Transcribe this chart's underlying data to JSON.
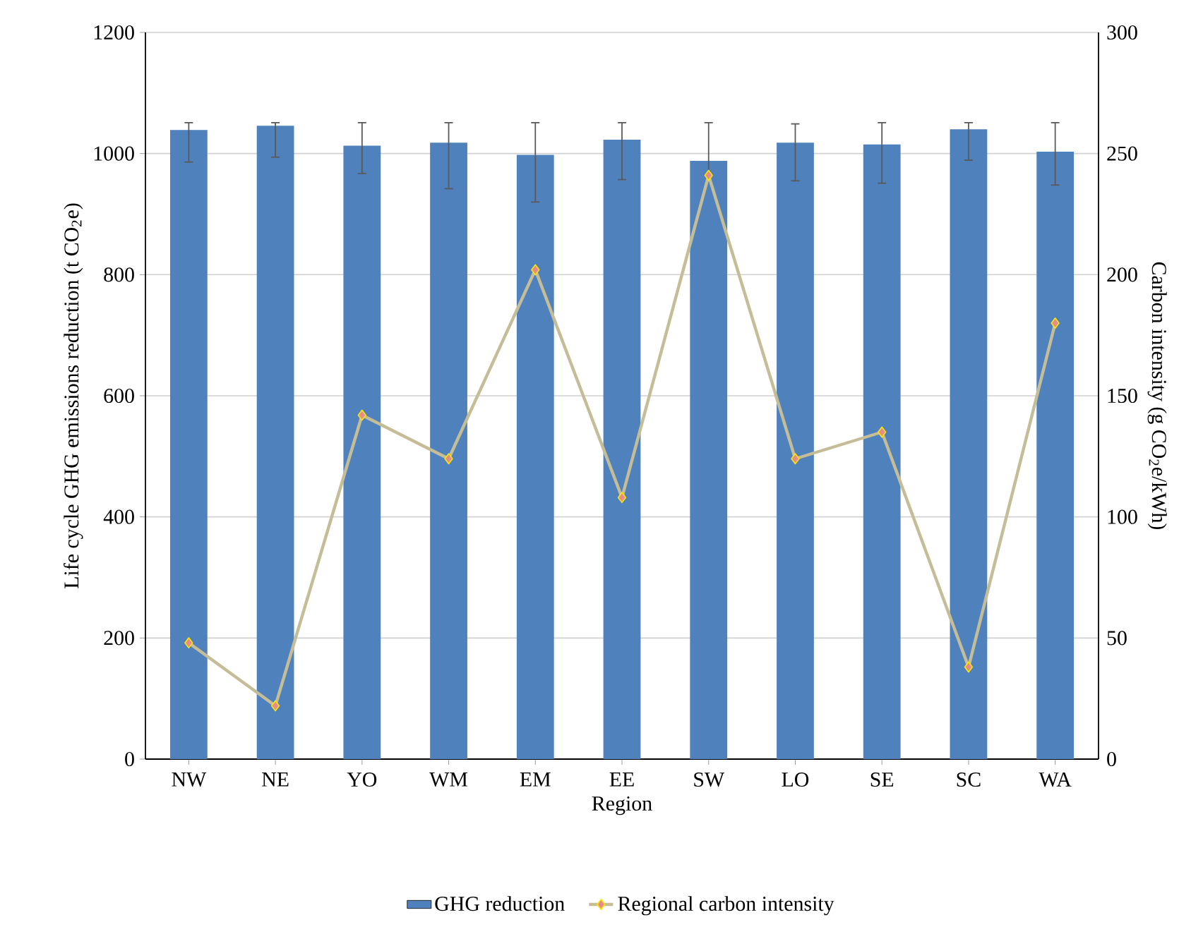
{
  "chart_data": {
    "type": "bar",
    "xlabel": "Region",
    "ylabel": "Life cycle GHG emissions reduction (t CO$_{2}$e)",
    "y2label": "Carbon intensity  (g CO$_{2}$e/kWh)",
    "categories": [
      "NW",
      "NE",
      "YO",
      "WM",
      "EM",
      "EE",
      "SW",
      "LO",
      "SE",
      "SC",
      "WA"
    ],
    "series": [
      {
        "name": "GHG reduction",
        "color": "#4f81bd",
        "values": [
          1039,
          1046,
          1013,
          1018,
          998,
          1023,
          988,
          1018,
          1015,
          1040,
          1003
        ],
        "errors": [
          [
            986,
            1051
          ],
          [
            994,
            1051
          ],
          [
            967,
            1051
          ],
          [
            942,
            1051
          ],
          [
            920,
            1051
          ],
          [
            957,
            1051
          ],
          [
            965,
            1051
          ],
          [
            955,
            1049
          ],
          [
            951,
            1051
          ],
          [
            989,
            1051
          ],
          [
            948,
            1051
          ]
        ]
      },
      {
        "name": "Regional carbon intensity",
        "type": "line",
        "axis": "y2",
        "color": "#c4bd97",
        "values": [
          48,
          22,
          142,
          124,
          202,
          108,
          241,
          124,
          135,
          38,
          180
        ]
      }
    ],
    "ylim": [
      0,
      1200
    ],
    "yticks": [
      0,
      200,
      400,
      600,
      800,
      1000,
      1200
    ],
    "y2lim": [
      0,
      300
    ],
    "y2ticks": [
      0,
      50,
      100,
      150,
      200,
      250,
      300
    ],
    "grid": "y",
    "legend": "bottom",
    "marker": "diamond",
    "line_style": "solid"
  }
}
